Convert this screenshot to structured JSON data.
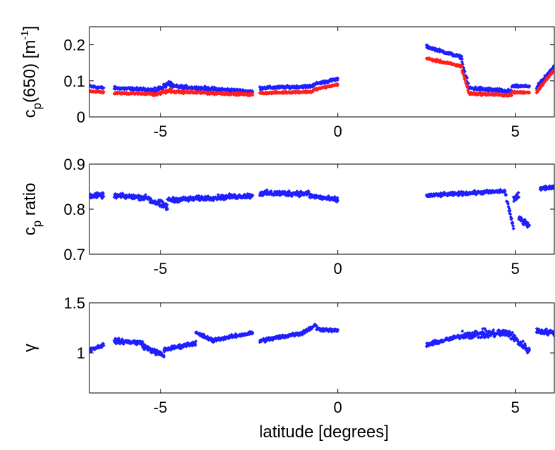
{
  "figure": {
    "xlabel": "latitude [degrees]"
  },
  "chart_data": [
    {
      "type": "scatter",
      "ylabel_main": "c",
      "ylabel_sub": "p",
      "ylabel_rest": "(650) [m",
      "ylabel_sup": "-1",
      "ylabel_end": "]",
      "xlim": [
        -7.0,
        6.1
      ],
      "ylim": [
        0,
        0.25
      ],
      "xticks": [
        -5,
        0,
        5
      ],
      "xtick_labels": [
        "-5",
        "0",
        "5"
      ],
      "yticks": [
        0,
        0.1,
        0.2
      ],
      "ytick_labels": [
        "0",
        "0.1",
        "0.2"
      ],
      "colors": {
        "blue": "#1f1fff",
        "red": "#ff1f1f"
      },
      "series": [
        {
          "color": "#1f1fff",
          "segments": [
            {
              "x": [
                -7.0,
                -6.6
              ],
              "y": [
                0.085,
                0.08
              ],
              "noise": 0.006
            },
            {
              "x": [
                -6.3,
                -5.2
              ],
              "y": [
                0.08,
                0.075
              ],
              "noise": 0.006
            },
            {
              "x": [
                -5.2,
                -4.7
              ],
              "y": [
                0.07,
                0.095
              ],
              "noise": 0.01
            },
            {
              "x": [
                -4.7,
                -2.4
              ],
              "y": [
                0.085,
                0.07
              ],
              "noise": 0.007
            },
            {
              "x": [
                -2.2,
                -0.7
              ],
              "y": [
                0.08,
                0.085
              ],
              "noise": 0.006
            },
            {
              "x": [
                -0.7,
                0.0
              ],
              "y": [
                0.09,
                0.105
              ],
              "noise": 0.006
            },
            {
              "x": [
                2.5,
                3.5
              ],
              "y": [
                0.195,
                0.165
              ],
              "noise": 0.006
            },
            {
              "x": [
                3.5,
                3.7
              ],
              "y": [
                0.15,
                0.08
              ],
              "noise": 0.01
            },
            {
              "x": [
                3.7,
                4.9
              ],
              "y": [
                0.08,
                0.07
              ],
              "noise": 0.008
            },
            {
              "x": [
                4.9,
                5.4
              ],
              "y": [
                0.085,
                0.085
              ],
              "noise": 0.005
            },
            {
              "x": [
                5.6,
                6.1
              ],
              "y": [
                0.08,
                0.14
              ],
              "noise": 0.008
            }
          ]
        },
        {
          "color": "#ff1f1f",
          "segments": [
            {
              "x": [
                -7.0,
                -6.6
              ],
              "y": [
                0.072,
                0.068
              ],
              "noise": 0.004
            },
            {
              "x": [
                -6.3,
                -5.2
              ],
              "y": [
                0.066,
                0.064
              ],
              "noise": 0.004
            },
            {
              "x": [
                -5.2,
                -4.7
              ],
              "y": [
                0.06,
                0.075
              ],
              "noise": 0.006
            },
            {
              "x": [
                -4.7,
                -2.4
              ],
              "y": [
                0.07,
                0.062
              ],
              "noise": 0.005
            },
            {
              "x": [
                -2.2,
                -0.7
              ],
              "y": [
                0.066,
                0.07
              ],
              "noise": 0.004
            },
            {
              "x": [
                -0.7,
                0.0
              ],
              "y": [
                0.075,
                0.09
              ],
              "noise": 0.004
            },
            {
              "x": [
                2.5,
                3.5
              ],
              "y": [
                0.162,
                0.14
              ],
              "noise": 0.005
            },
            {
              "x": [
                3.5,
                3.7
              ],
              "y": [
                0.13,
                0.065
              ],
              "noise": 0.008
            },
            {
              "x": [
                3.7,
                4.9
              ],
              "y": [
                0.065,
                0.06
              ],
              "noise": 0.005
            },
            {
              "x": [
                4.9,
                5.4
              ],
              "y": [
                0.068,
                0.068
              ],
              "noise": 0.004
            },
            {
              "x": [
                5.6,
                6.1
              ],
              "y": [
                0.07,
                0.13
              ],
              "noise": 0.007
            }
          ]
        }
      ]
    },
    {
      "type": "scatter",
      "ylabel_main": "c",
      "ylabel_sub": "p",
      "ylabel_rest": " ratio",
      "ylabel_sup": "",
      "ylabel_end": "",
      "xlim": [
        -7.0,
        6.1
      ],
      "ylim": [
        0.7,
        0.9
      ],
      "xticks": [
        -5,
        0,
        5
      ],
      "xtick_labels": [
        "-5",
        "0",
        "5"
      ],
      "yticks": [
        0.7,
        0.8,
        0.9
      ],
      "ytick_labels": [
        "0.7",
        "0.8",
        "0.9"
      ],
      "colors": {
        "blue": "#1f1fff"
      },
      "series": [
        {
          "color": "#1f1fff",
          "segments": [
            {
              "x": [
                -7.0,
                -6.6
              ],
              "y": [
                0.83,
                0.83
              ],
              "noise": 0.008
            },
            {
              "x": [
                -6.3,
                -5.3
              ],
              "y": [
                0.83,
                0.825
              ],
              "noise": 0.008
            },
            {
              "x": [
                -5.3,
                -4.8
              ],
              "y": [
                0.82,
                0.805
              ],
              "noise": 0.012
            },
            {
              "x": [
                -4.8,
                -2.4
              ],
              "y": [
                0.82,
                0.83
              ],
              "noise": 0.008
            },
            {
              "x": [
                -2.2,
                -0.8
              ],
              "y": [
                0.835,
                0.835
              ],
              "noise": 0.009
            },
            {
              "x": [
                -0.8,
                0.0
              ],
              "y": [
                0.83,
                0.82
              ],
              "noise": 0.008
            },
            {
              "x": [
                2.5,
                4.7
              ],
              "y": [
                0.83,
                0.84
              ],
              "noise": 0.006
            },
            {
              "x": [
                4.7,
                4.95
              ],
              "y": [
                0.84,
                0.76
              ],
              "noise": 0.01
            },
            {
              "x": [
                4.95,
                5.1
              ],
              "y": [
                0.82,
                0.83
              ],
              "noise": 0.01
            },
            {
              "x": [
                5.1,
                5.4
              ],
              "y": [
                0.78,
                0.765
              ],
              "noise": 0.01
            },
            {
              "x": [
                5.7,
                6.1
              ],
              "y": [
                0.845,
                0.85
              ],
              "noise": 0.006
            }
          ]
        }
      ]
    },
    {
      "type": "scatter",
      "ylabel_main": "γ",
      "ylabel_sub": "",
      "ylabel_rest": "",
      "ylabel_sup": "",
      "ylabel_end": "",
      "xlim": [
        -7.0,
        6.1
      ],
      "ylim": [
        0.6,
        1.5
      ],
      "xticks": [
        -5,
        0,
        5
      ],
      "xtick_labels": [
        "-5",
        "0",
        "5"
      ],
      "yticks": [
        1.0,
        1.5
      ],
      "ytick_labels": [
        "1",
        "1.5"
      ],
      "colors": {
        "blue": "#1f1fff"
      },
      "series": [
        {
          "color": "#1f1fff",
          "segments": [
            {
              "x": [
                -7.0,
                -6.6
              ],
              "y": [
                1.03,
                1.08
              ],
              "noise": 0.03
            },
            {
              "x": [
                -6.3,
                -5.5
              ],
              "y": [
                1.12,
                1.1
              ],
              "noise": 0.035
            },
            {
              "x": [
                -5.5,
                -4.9
              ],
              "y": [
                1.07,
                0.97
              ],
              "noise": 0.04
            },
            {
              "x": [
                -4.9,
                -4.0
              ],
              "y": [
                1.03,
                1.1
              ],
              "noise": 0.03
            },
            {
              "x": [
                -4.0,
                -3.5
              ],
              "y": [
                1.2,
                1.12
              ],
              "noise": 0.03
            },
            {
              "x": [
                -3.5,
                -2.4
              ],
              "y": [
                1.13,
                1.2
              ],
              "noise": 0.025
            },
            {
              "x": [
                -2.2,
                -1.0
              ],
              "y": [
                1.12,
                1.2
              ],
              "noise": 0.03
            },
            {
              "x": [
                -1.0,
                -0.6
              ],
              "y": [
                1.2,
                1.28
              ],
              "noise": 0.03
            },
            {
              "x": [
                -0.6,
                0.0
              ],
              "y": [
                1.24,
                1.22
              ],
              "noise": 0.025
            },
            {
              "x": [
                2.5,
                3.5
              ],
              "y": [
                1.08,
                1.17
              ],
              "noise": 0.03
            },
            {
              "x": [
                3.5,
                4.8
              ],
              "y": [
                1.18,
                1.2
              ],
              "noise": 0.06
            },
            {
              "x": [
                4.8,
                5.4
              ],
              "y": [
                1.2,
                1.02
              ],
              "noise": 0.06
            },
            {
              "x": [
                5.6,
                6.1
              ],
              "y": [
                1.22,
                1.2
              ],
              "noise": 0.04
            }
          ]
        }
      ]
    }
  ]
}
